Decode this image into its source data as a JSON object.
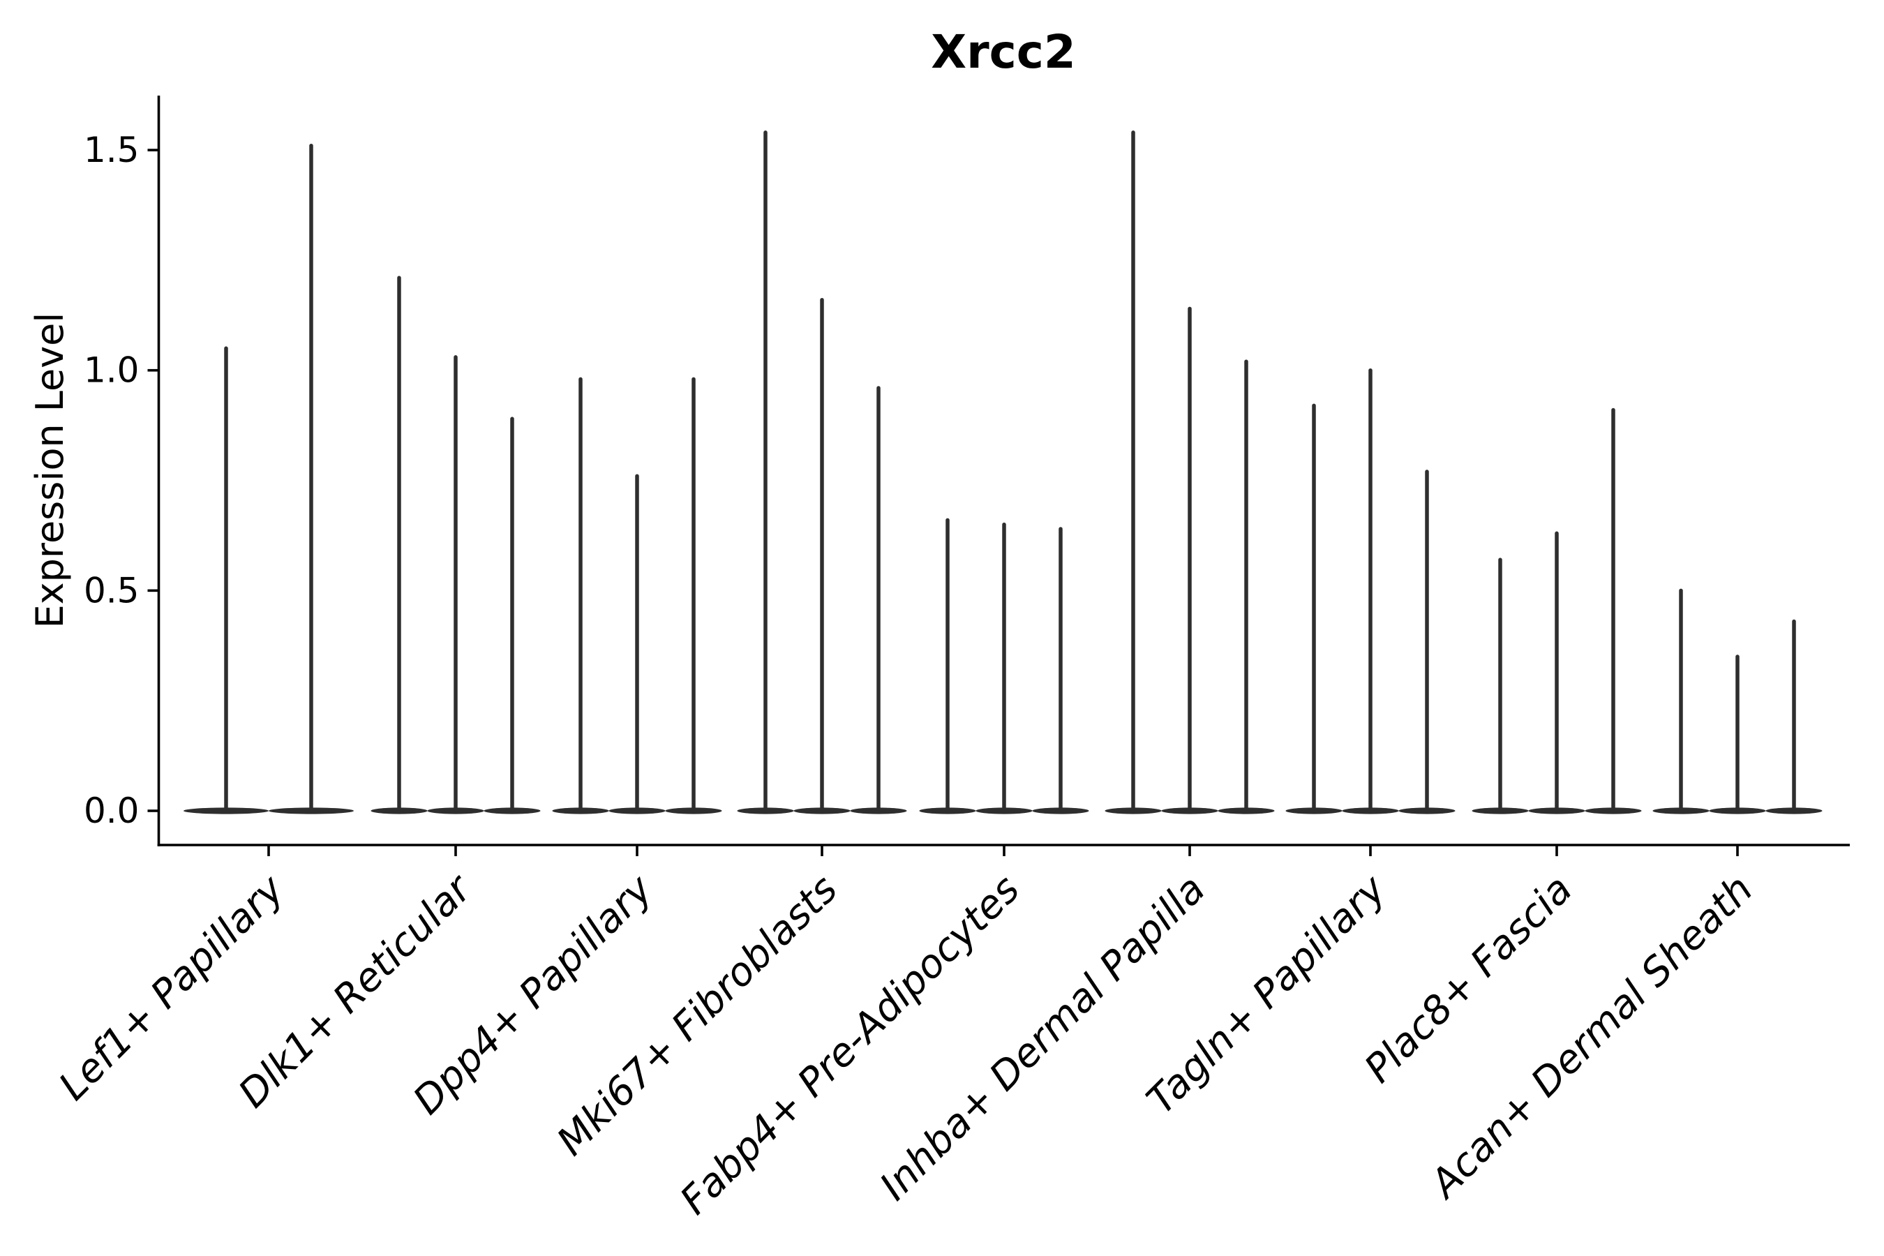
{
  "figure": {
    "title": "Xrcc2",
    "y_axis": {
      "label": "Expression Level",
      "tick_labels": [
        "0.0",
        "0.5",
        "1.0",
        "1.5"
      ]
    },
    "x_axis": {
      "tick_labels": [
        "Lef1+ Papillary",
        "Dlk1+ Reticular",
        "Dpp4+ Papillary",
        "Mki67+ Fibroblasts",
        "Fabp4+ Pre-Adipocytes",
        "Inhba+ Dermal Papilla",
        "Tagln+ Papillary",
        "Plac8+ Fascia",
        "Acan+ Dermal Sheath"
      ]
    }
  },
  "chart_data": {
    "type": "violin",
    "title": "Xrcc2",
    "xlabel": "",
    "ylabel": "Expression Level",
    "ylim": [
      -0.08,
      1.62
    ],
    "yticks": [
      0.0,
      0.5,
      1.0,
      1.5
    ],
    "ytick_labels": [
      "0.0",
      "0.5",
      "1.0",
      "1.5"
    ],
    "grid": false,
    "legend": null,
    "ink_color": "#2e2e2e",
    "axis_color": "#000000",
    "categories": [
      "Lef1+ Papillary",
      "Dlk1+ Reticular",
      "Dpp4+ Papillary",
      "Mki67+ Fibroblasts",
      "Fabp4+ Pre-Adipocytes",
      "Inhba+ Dermal Papilla",
      "Tagln+ Papillary",
      "Plac8+ Fascia",
      "Acan+ Dermal Sheath"
    ],
    "series": [
      {
        "category": "Lef1+ Papillary",
        "violin_max_values": [
          1.05,
          1.51
        ]
      },
      {
        "category": "Dlk1+ Reticular",
        "violin_max_values": [
          1.21,
          1.03,
          0.89
        ]
      },
      {
        "category": "Dpp4+ Papillary",
        "violin_max_values": [
          0.98,
          0.76,
          0.98
        ]
      },
      {
        "category": "Mki67+ Fibroblasts",
        "violin_max_values": [
          1.54,
          1.16,
          0.96
        ]
      },
      {
        "category": "Fabp4+ Pre-Adipocytes",
        "violin_max_values": [
          0.66,
          0.65,
          0.64
        ]
      },
      {
        "category": "Inhba+ Dermal Papilla",
        "violin_max_values": [
          1.54,
          1.14,
          1.02
        ]
      },
      {
        "category": "Tagln+ Papillary",
        "violin_max_values": [
          0.92,
          1.0,
          0.77
        ]
      },
      {
        "category": "Plac8+ Fascia",
        "violin_max_values": [
          0.57,
          0.63,
          0.91
        ]
      },
      {
        "category": "Acan+ Dermal Sheath",
        "violin_max_values": [
          0.5,
          0.35,
          0.43
        ]
      }
    ],
    "violin_baseline_value": 0.0
  }
}
